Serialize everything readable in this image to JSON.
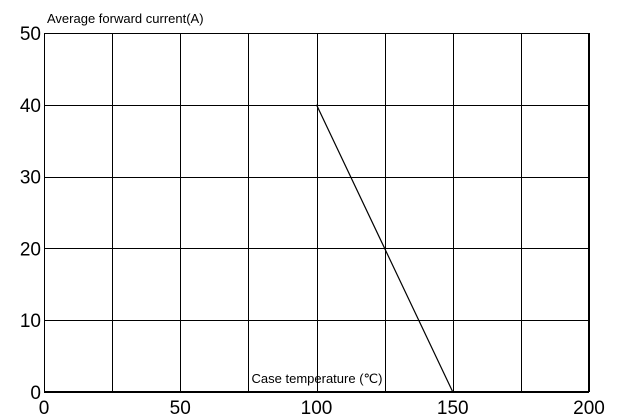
{
  "chart_data": {
    "type": "line",
    "title": "",
    "ylabel": "Average forward current(A)",
    "xlabel": "Case temperature (℃)",
    "xlim": [
      0,
      200
    ],
    "ylim": [
      0,
      50
    ],
    "x_ticks": [
      0,
      50,
      100,
      150,
      200
    ],
    "y_ticks": [
      0,
      10,
      20,
      30,
      40,
      50
    ],
    "x_gridlines": [
      0,
      25,
      50,
      75,
      100,
      125,
      150,
      175,
      200
    ],
    "y_gridlines": [
      0,
      10,
      20,
      30,
      40,
      50
    ],
    "grid": true,
    "legend": "none",
    "line_color": "#000000",
    "series": [
      {
        "x": [
          100,
          150
        ],
        "y": [
          40,
          0
        ]
      }
    ]
  }
}
